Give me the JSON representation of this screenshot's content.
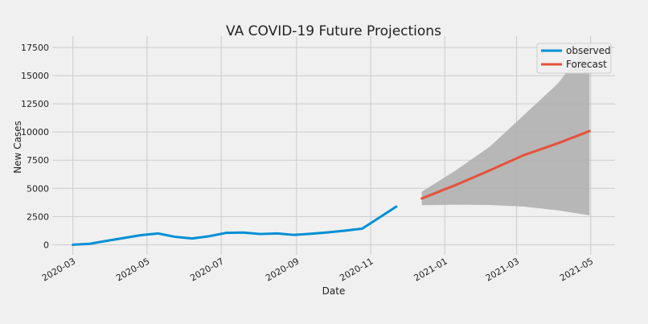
{
  "chart_data": {
    "type": "line",
    "title": "VA COVID-19 Future Projections",
    "xlabel": "Date",
    "ylabel": "New Cases",
    "xlim": [
      "2020-02-13",
      "2021-05-21"
    ],
    "ylim": [
      -900,
      18500
    ],
    "x_ticks": [
      {
        "date": "2020-03-01",
        "label": "2020-03"
      },
      {
        "date": "2020-05-01",
        "label": "2020-05"
      },
      {
        "date": "2020-07-01",
        "label": "2020-07"
      },
      {
        "date": "2020-09-01",
        "label": "2020-09"
      },
      {
        "date": "2020-11-01",
        "label": "2020-11"
      },
      {
        "date": "2021-01-01",
        "label": "2021-01"
      },
      {
        "date": "2021-03-01",
        "label": "2021-03"
      },
      {
        "date": "2021-05-01",
        "label": "2021-05"
      }
    ],
    "y_ticks": [
      0,
      2500,
      5000,
      7500,
      10000,
      12500,
      15000,
      17500
    ],
    "y_tick_labels": [
      "0",
      "2500",
      "5000",
      "7500",
      "10000",
      "12500",
      "15000",
      "17500"
    ],
    "grid": true,
    "legend_position": "top-right",
    "series": [
      {
        "name": "observed",
        "color": "#008fd5",
        "points": [
          [
            "2020-03-01",
            0
          ],
          [
            "2020-03-15",
            80
          ],
          [
            "2020-03-29",
            350
          ],
          [
            "2020-04-12",
            600
          ],
          [
            "2020-04-26",
            850
          ],
          [
            "2020-05-10",
            1000
          ],
          [
            "2020-05-24",
            700
          ],
          [
            "2020-06-07",
            550
          ],
          [
            "2020-06-21",
            750
          ],
          [
            "2020-07-05",
            1050
          ],
          [
            "2020-07-19",
            1080
          ],
          [
            "2020-08-02",
            950
          ],
          [
            "2020-08-16",
            1000
          ],
          [
            "2020-08-30",
            870
          ],
          [
            "2020-09-13",
            970
          ],
          [
            "2020-09-27",
            1100
          ],
          [
            "2020-10-11",
            1250
          ],
          [
            "2020-10-25",
            1430
          ],
          [
            "2020-11-08",
            2400
          ],
          [
            "2020-11-22",
            3380
          ]
        ]
      },
      {
        "name": "Forecast",
        "color": "#e5523a",
        "points": [
          [
            "2020-12-13",
            4100
          ],
          [
            "2021-01-10",
            5300
          ],
          [
            "2021-02-07",
            6600
          ],
          [
            "2021-03-07",
            7950
          ],
          [
            "2021-04-04",
            9000
          ],
          [
            "2021-04-30",
            10080
          ]
        ]
      }
    ],
    "confidence_band": {
      "series": "Forecast",
      "color": "#b0b0b0",
      "upper": [
        [
          "2020-12-13",
          4700
        ],
        [
          "2021-01-10",
          6600
        ],
        [
          "2021-02-07",
          8700
        ],
        [
          "2021-03-07",
          11500
        ],
        [
          "2021-04-04",
          14300
        ],
        [
          "2021-04-30",
          17900
        ]
      ],
      "lower": [
        [
          "2020-12-13",
          3500
        ],
        [
          "2021-01-10",
          3550
        ],
        [
          "2021-02-07",
          3520
        ],
        [
          "2021-03-07",
          3380
        ],
        [
          "2021-04-04",
          3050
        ],
        [
          "2021-04-30",
          2600
        ]
      ]
    }
  }
}
